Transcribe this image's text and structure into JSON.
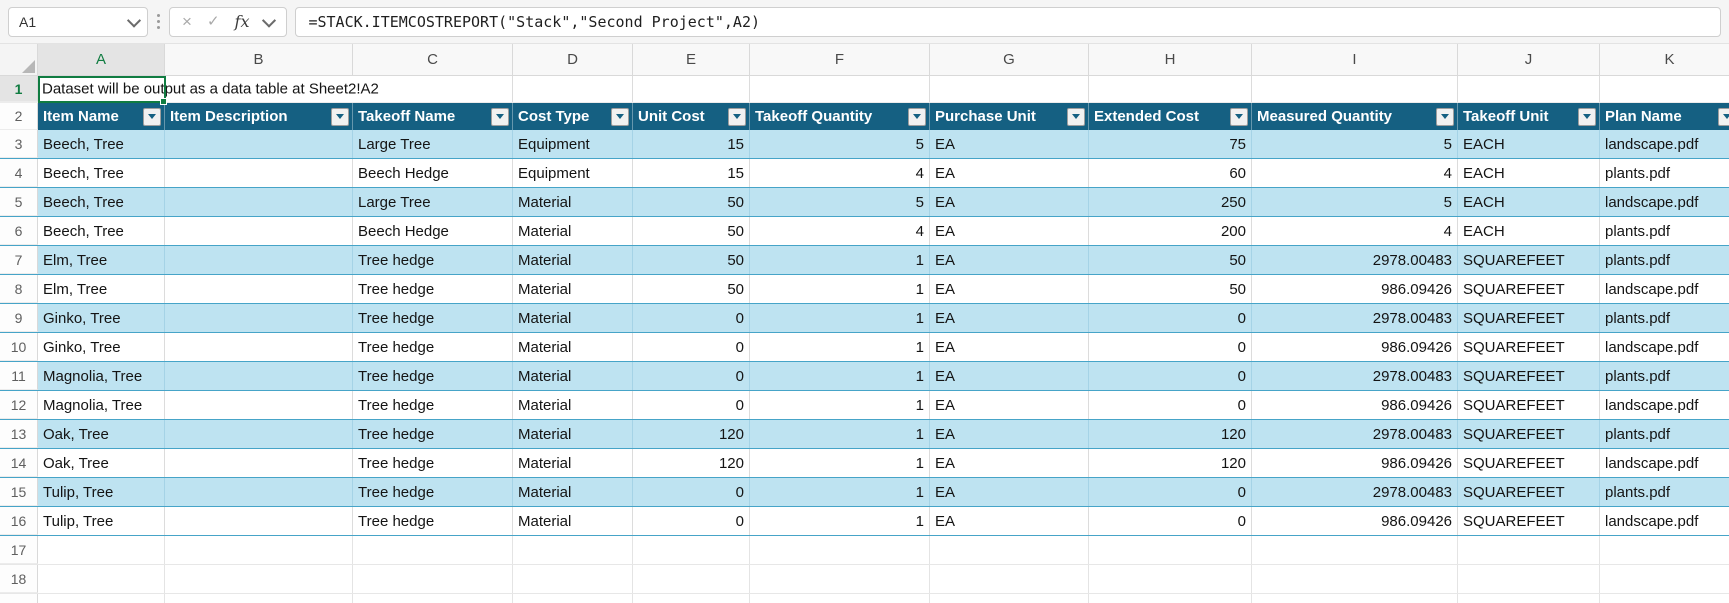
{
  "formula_bar": {
    "name_box": "A1",
    "cancel_icon": "×",
    "confirm_icon": "✓",
    "fx_icon": "fx",
    "formula": "=STACK.ITEMCOSTREPORT(\"Stack\",\"Second Project\",A2)"
  },
  "sheet": {
    "column_letters": [
      "A",
      "B",
      "C",
      "D",
      "E",
      "F",
      "G",
      "H",
      "I",
      "J",
      "K"
    ],
    "selected_column": "A",
    "selected_cell": "A1",
    "row1": {
      "n": "1",
      "text": "Dataset will be output as a data table at Sheet2!A2"
    },
    "header_row_n": "2",
    "table": {
      "headers": [
        "Item Name",
        "Item Description",
        "Takeoff Name",
        "Cost Type",
        "Unit Cost",
        "Takeoff Quantity",
        "Purchase Unit",
        "Extended Cost",
        "Measured Quantity",
        "Takeoff Unit",
        "Plan Name"
      ],
      "rows": [
        {
          "n": "3",
          "cells": [
            "Beech, Tree",
            "",
            "Large Tree",
            "Equipment",
            "15",
            "5",
            "EA",
            "75",
            "5",
            "EACH",
            "landscape.pdf"
          ]
        },
        {
          "n": "4",
          "cells": [
            "Beech, Tree",
            "",
            "Beech Hedge",
            "Equipment",
            "15",
            "4",
            "EA",
            "60",
            "4",
            "EACH",
            "plants.pdf"
          ]
        },
        {
          "n": "5",
          "cells": [
            "Beech, Tree",
            "",
            "Large Tree",
            "Material",
            "50",
            "5",
            "EA",
            "250",
            "5",
            "EACH",
            "landscape.pdf"
          ]
        },
        {
          "n": "6",
          "cells": [
            "Beech, Tree",
            "",
            "Beech Hedge",
            "Material",
            "50",
            "4",
            "EA",
            "200",
            "4",
            "EACH",
            "plants.pdf"
          ]
        },
        {
          "n": "7",
          "cells": [
            "Elm, Tree",
            "",
            "Tree hedge",
            "Material",
            "50",
            "1",
            "EA",
            "50",
            "2978.00483",
            "SQUAREFEET",
            "plants.pdf"
          ]
        },
        {
          "n": "8",
          "cells": [
            "Elm, Tree",
            "",
            "Tree hedge",
            "Material",
            "50",
            "1",
            "EA",
            "50",
            "986.09426",
            "SQUAREFEET",
            "landscape.pdf"
          ]
        },
        {
          "n": "9",
          "cells": [
            "Ginko, Tree",
            "",
            "Tree hedge",
            "Material",
            "0",
            "1",
            "EA",
            "0",
            "2978.00483",
            "SQUAREFEET",
            "plants.pdf"
          ]
        },
        {
          "n": "10",
          "cells": [
            "Ginko, Tree",
            "",
            "Tree hedge",
            "Material",
            "0",
            "1",
            "EA",
            "0",
            "986.09426",
            "SQUAREFEET",
            "landscape.pdf"
          ]
        },
        {
          "n": "11",
          "cells": [
            "Magnolia, Tree",
            "",
            "Tree hedge",
            "Material",
            "0",
            "1",
            "EA",
            "0",
            "2978.00483",
            "SQUAREFEET",
            "plants.pdf"
          ]
        },
        {
          "n": "12",
          "cells": [
            "Magnolia, Tree",
            "",
            "Tree hedge",
            "Material",
            "0",
            "1",
            "EA",
            "0",
            "986.09426",
            "SQUAREFEET",
            "landscape.pdf"
          ]
        },
        {
          "n": "13",
          "cells": [
            "Oak, Tree",
            "",
            "Tree hedge",
            "Material",
            "120",
            "1",
            "EA",
            "120",
            "2978.00483",
            "SQUAREFEET",
            "plants.pdf"
          ]
        },
        {
          "n": "14",
          "cells": [
            "Oak, Tree",
            "",
            "Tree hedge",
            "Material",
            "120",
            "1",
            "EA",
            "120",
            "986.09426",
            "SQUAREFEET",
            "landscape.pdf"
          ]
        },
        {
          "n": "15",
          "cells": [
            "Tulip, Tree",
            "",
            "Tree hedge",
            "Material",
            "0",
            "1",
            "EA",
            "0",
            "2978.00483",
            "SQUAREFEET",
            "plants.pdf"
          ]
        },
        {
          "n": "16",
          "cells": [
            "Tulip, Tree",
            "",
            "Tree hedge",
            "Material",
            "0",
            "1",
            "EA",
            "0",
            "986.09426",
            "SQUAREFEET",
            "landscape.pdf"
          ]
        }
      ]
    },
    "empty_rows": [
      "17",
      "18"
    ]
  },
  "colors": {
    "table_header_bg": "#156082",
    "band_fill": "#BEE3F1",
    "row_border": "#46A4C8",
    "selection_border": "#107C41",
    "filter_icon": "#156082"
  }
}
